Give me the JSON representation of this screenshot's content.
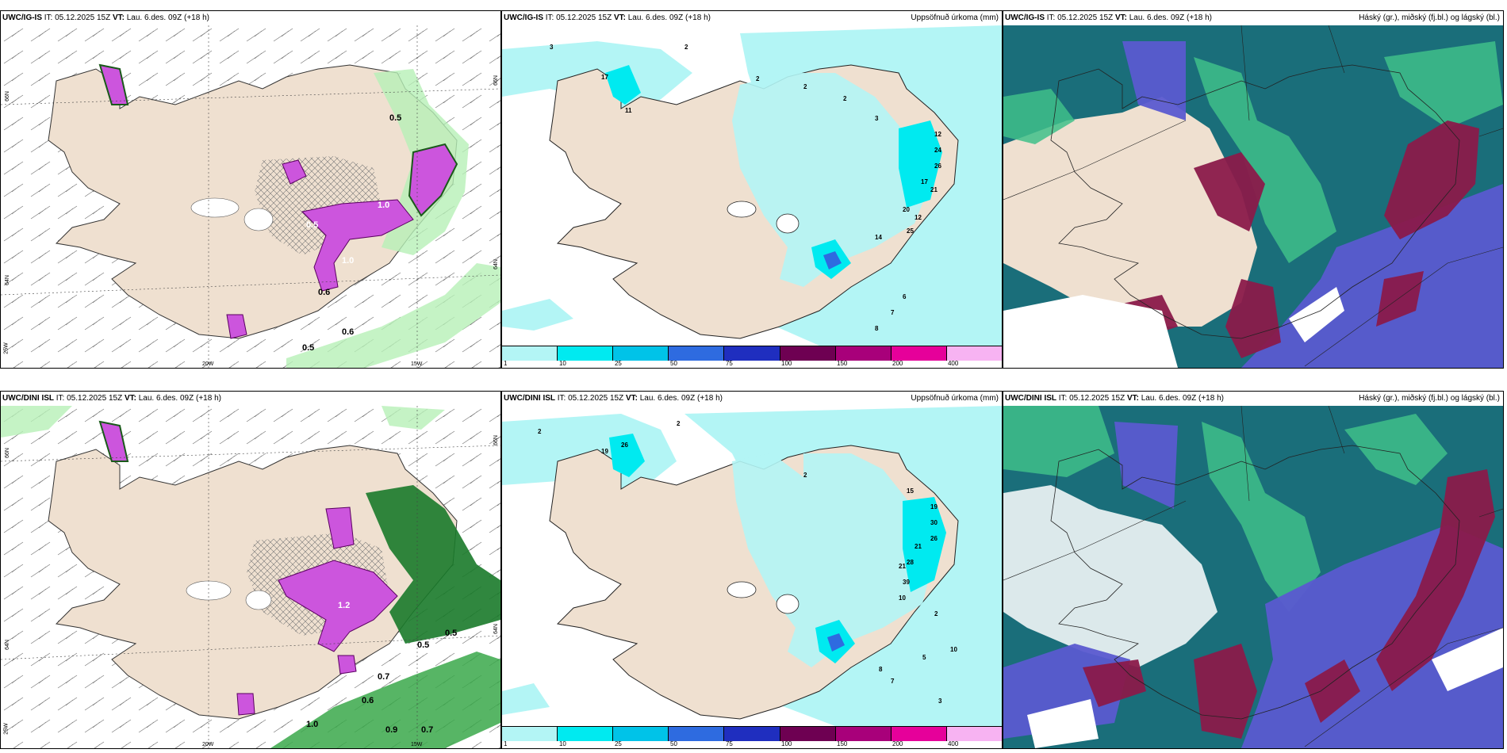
{
  "row_top": {
    "model_label": "UWC/IG-IS",
    "it_text": " IT: 05.12.2025 15Z ",
    "vt_label": "VT:",
    "vt_text": " Lau. 6.des. 09Z (+18 h)",
    "panel2_title": "Uppsöfnuð úrkoma (mm)",
    "panel3_title": "Háský (gr.), miðský (fj.bl.) og lágský (bl.)"
  },
  "row_bottom": {
    "model_label": "UWC/DINI ISL",
    "it_text": " IT: 05.12.2025 15Z ",
    "vt_label": "VT:",
    "vt_text": " Lau. 6.des. 09Z (+18 h)",
    "panel2_title": "Uppsöfnuð úrkoma (mm)",
    "panel3_title": "Háský (gr.), miðský (fj.bl.) og lágský (bl.)"
  },
  "grid_labels": {
    "lat66": "66N",
    "lat64": "64N",
    "lon25": "25W",
    "lon20": "20W",
    "lon15": "15W",
    "right66": "66N",
    "right64": "64N"
  },
  "colorbar": {
    "labels": [
      "1",
      "10",
      "25",
      "50",
      "75",
      "100",
      "150",
      "200",
      "400"
    ],
    "colors": [
      "#b3f5f5",
      "#00eaf0",
      "#00c3e8",
      "#2e6be0",
      "#1f2ebf",
      "#6e0052",
      "#a8007a",
      "#e6009a",
      "#f7b3f2"
    ]
  },
  "precip_labels_top": [
    "3",
    "2",
    "2",
    "11",
    "17",
    "2",
    "2",
    "3",
    "12",
    "24",
    "26",
    "17",
    "21",
    "20",
    "25",
    "14",
    "12",
    "8",
    "6",
    "7"
  ],
  "precip_labels_bottom": [
    "2",
    "2",
    "19",
    "26",
    "2",
    "15",
    "19",
    "30",
    "26",
    "21",
    "28",
    "39",
    "21",
    "10",
    "10",
    "2",
    "8",
    "5",
    "7",
    "3"
  ],
  "snow_labels_top": [
    "0.6",
    "0.5",
    "1.0",
    "0.5",
    "1.0",
    "0.5",
    "0.6"
  ],
  "snow_labels_bottom": [
    "0.5",
    "0.7",
    "0.6",
    "1.0",
    "0.9",
    "0.7",
    "0.5",
    "1.2"
  ],
  "colors": {
    "land": "#efe0d0",
    "sea": "#ffffff",
    "precip_light": "#b3f5f5",
    "precip_mid": "#00eaf0",
    "snow_green": "#b7f0b7",
    "snow_dark": "#1a7a2a",
    "snow_magenta": "#cc55dd",
    "cloud_teal": "#1a6e7a",
    "cloud_green": "#3fbf8a",
    "cloud_blue": "#5a5ad0",
    "cloud_maroon": "#8a1a4a"
  }
}
